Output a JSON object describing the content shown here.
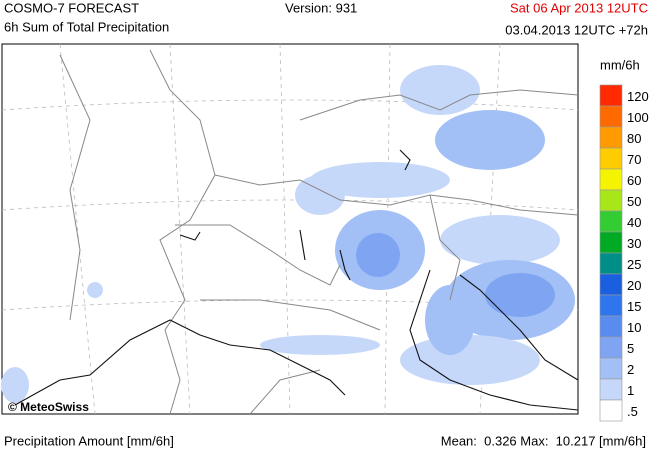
{
  "header": {
    "title": "COSMO-7 FORECAST",
    "subtitle": "6h Sum of Total Precipitation",
    "version": "Version: 931",
    "valid_time": "Sat 06 Apr 2013 12UTC",
    "run_time": "03.04.2013 12UTC +72h"
  },
  "map": {
    "copyright": "© MeteoSwiss"
  },
  "legend": {
    "title": "mm/6h",
    "items": [
      {
        "label": "120",
        "color": "#ff2a00"
      },
      {
        "label": "100",
        "color": "#ff6a00"
      },
      {
        "label": "80",
        "color": "#ff9a00"
      },
      {
        "label": "70",
        "color": "#ffcc00"
      },
      {
        "label": "60",
        "color": "#f4f400"
      },
      {
        "label": "50",
        "color": "#a8e61a"
      },
      {
        "label": "40",
        "color": "#33cc33"
      },
      {
        "label": "30",
        "color": "#00aa22"
      },
      {
        "label": "25",
        "color": "#008f88"
      },
      {
        "label": "20",
        "color": "#1a5fe0"
      },
      {
        "label": "15",
        "color": "#2f76ee"
      },
      {
        "label": "10",
        "color": "#5a8cf0"
      },
      {
        "label": "5",
        "color": "#7ea4f2"
      },
      {
        "label": "2",
        "color": "#a2bff6"
      },
      {
        "label": "1",
        "color": "#c6d8fa"
      },
      {
        "label": ".5",
        "color": "#ffffff"
      }
    ]
  },
  "footer": {
    "quantity": "Precipitation Amount [mm/6h]",
    "stats": "Mean:  0.326 Max:  10.217 [mm/6h]"
  }
}
